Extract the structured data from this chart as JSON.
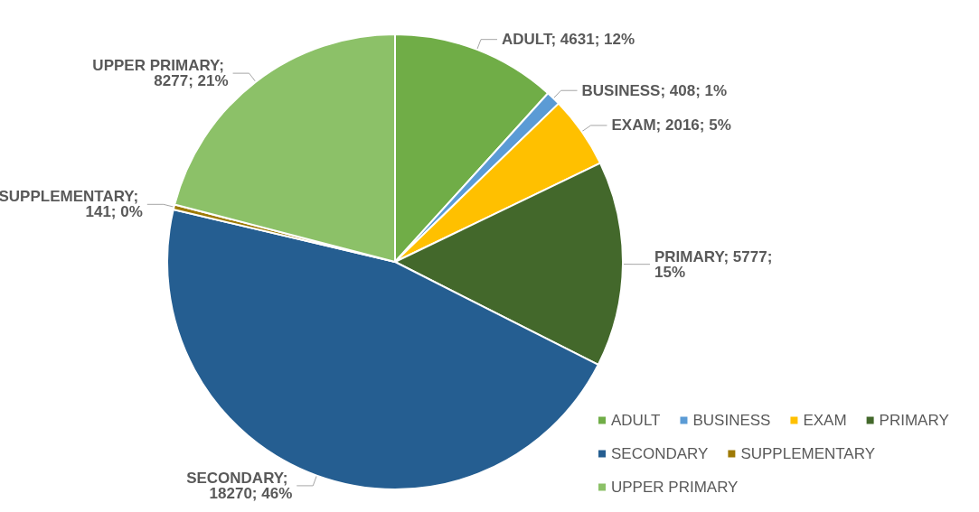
{
  "chart_data": {
    "type": "pie",
    "categories": [
      "ADULT",
      "BUSINESS",
      "EXAM",
      "PRIMARY",
      "SECONDARY",
      "SUPPLEMENTARY",
      "UPPER PRIMARY"
    ],
    "values": [
      4631,
      408,
      2016,
      5777,
      18270,
      141,
      8277
    ],
    "value_labels": [
      "ADULT; 4631; 12%",
      "BUSINESS; 408; 1%",
      "EXAM; 2016; 5%",
      "PRIMARY; 5777; 15%",
      "SECONDARY; 18270; 46%",
      "SUPPLEMENTARY; 141; 0%",
      "UPPER PRIMARY; 8277; 21%"
    ],
    "colors": [
      "#70ad47",
      "#5b9bd5",
      "#ffc000",
      "#43682b",
      "#255e91",
      "#9e7a05",
      "#8cc168"
    ],
    "legend": "bottom right"
  }
}
